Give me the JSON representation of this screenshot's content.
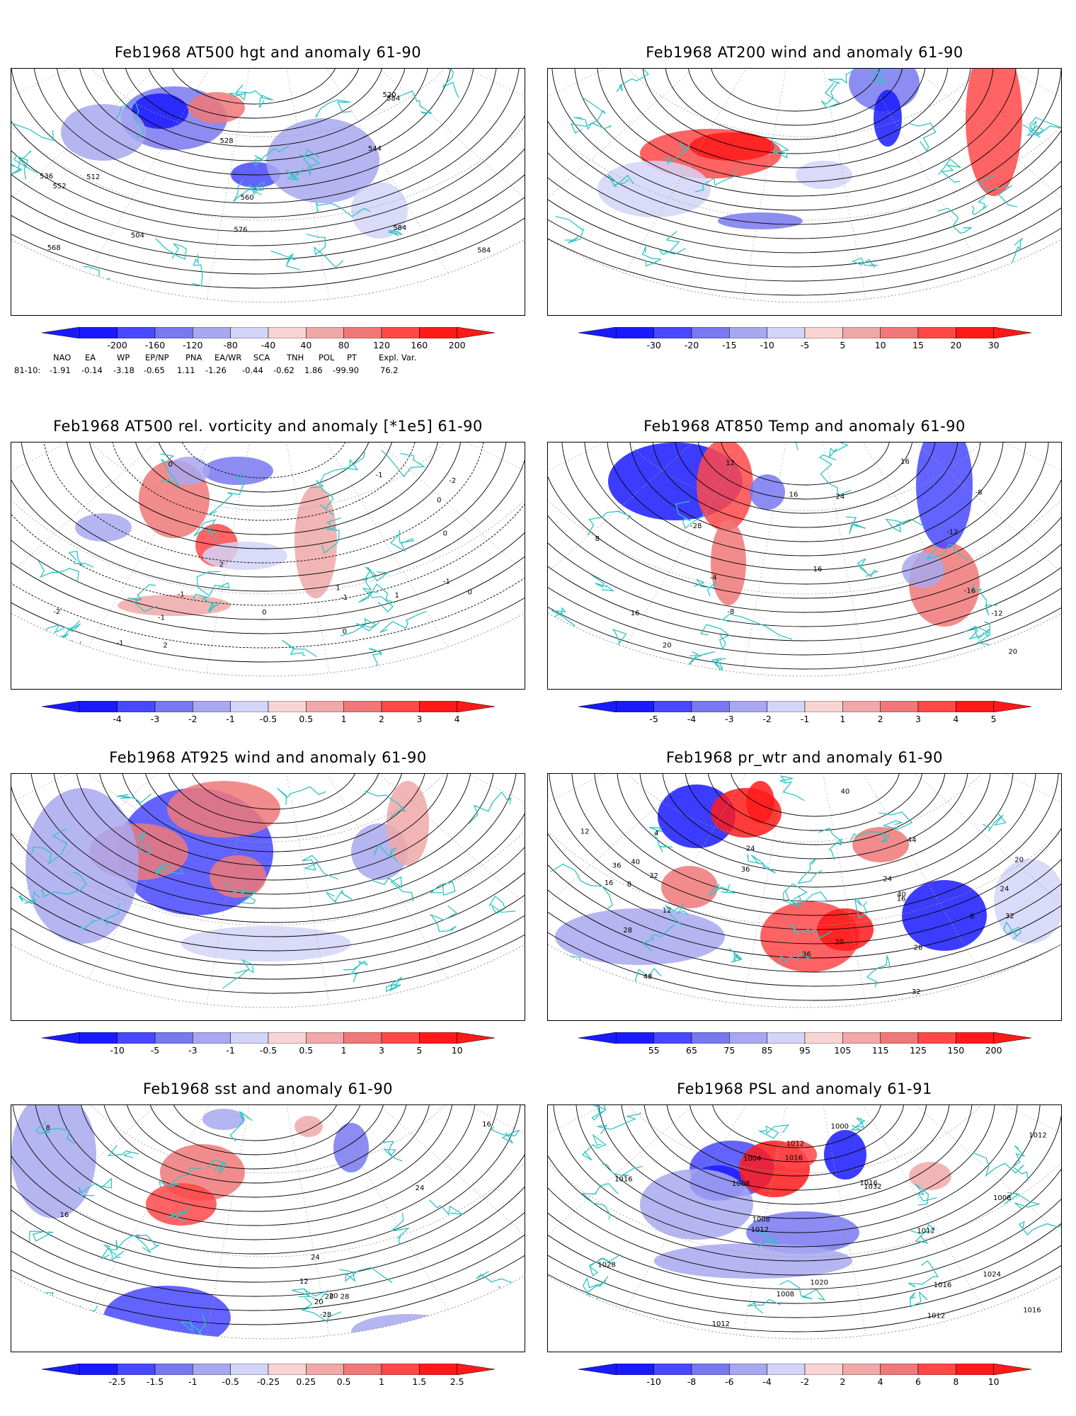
{
  "panels": [
    {
      "title": "Feb1968 AT500 hgt and anomaly 61-90",
      "ticks": [
        "-200",
        "-160",
        "-120",
        "-80",
        "-40",
        "40",
        "80",
        "120",
        "160",
        "200"
      ],
      "contour_labels": [
        "584",
        "504",
        "512",
        "520",
        "528",
        "536",
        "544",
        "552",
        "560",
        "568",
        "576",
        "584",
        "584"
      ]
    },
    {
      "title": "Feb1968 AT200 wind and anomaly 61-90",
      "ticks": [
        "-30",
        "-20",
        "-15",
        "-10",
        "-5",
        "5",
        "10",
        "15",
        "20",
        "30"
      ],
      "contour_labels": []
    },
    {
      "title": "Feb1968 AT500 rel. vorticity and anomaly [*1e5] 61-90",
      "ticks": [
        "-4",
        "-3",
        "-2",
        "-1",
        "-0.5",
        "0.5",
        "1",
        "2",
        "3",
        "4"
      ],
      "contour_labels": [
        "-1",
        "-2",
        "-1",
        "1",
        "2",
        "-1",
        "0",
        "0",
        "0",
        "1",
        "2",
        "-1",
        "0",
        "0",
        "-1",
        "0",
        "-1",
        "-2"
      ]
    },
    {
      "title": "Feb1968 AT850 Temp and anomaly 61-90",
      "ticks": [
        "-5",
        "-4",
        "-3",
        "-2",
        "-1",
        "1",
        "2",
        "3",
        "4",
        "5"
      ],
      "contour_labels": [
        "16",
        "-12",
        "-8",
        "-28",
        "-16",
        "-12",
        "-8",
        "16",
        "16",
        "-4",
        "8",
        "12",
        "16",
        "20",
        "24",
        "20"
      ]
    },
    {
      "title": "Feb1968 AT925 wind and anomaly 61-90",
      "ticks": [
        "-10",
        "-5",
        "-3",
        "-1",
        "-0.5",
        "0.5",
        "1",
        "3",
        "5",
        "10"
      ],
      "contour_labels": []
    },
    {
      "title": "Feb1968 pr_wtr and anomaly 61-90",
      "ticks": [
        "55",
        "65",
        "75",
        "85",
        "95",
        "105",
        "115",
        "125",
        "150",
        "200"
      ],
      "contour_labels": [
        "24",
        "28",
        "32",
        "48",
        "44",
        "40",
        "36",
        "24",
        "20",
        "16",
        "12",
        "8",
        "4",
        "20",
        "24",
        "32",
        "40",
        "28",
        "36",
        "12",
        "16",
        "8",
        "40",
        "36",
        "32"
      ]
    },
    {
      "title": "Feb1968 sst and anomaly 61-90",
      "ticks": [
        "-2.5",
        "-1.5",
        "-1",
        "-0.5",
        "-0.25",
        "0.25",
        "0.5",
        "1",
        "1.5",
        "2.5"
      ],
      "contour_labels": [
        "20",
        "12",
        "8",
        "16",
        "20",
        "24",
        "28",
        "28",
        "-28",
        "24",
        "16"
      ]
    },
    {
      "title": "Feb1968 PSL and anomaly 61-91",
      "ticks": [
        "-10",
        "-8",
        "-6",
        "-4",
        "-2",
        "2",
        "4",
        "6",
        "8",
        "10"
      ],
      "contour_labels": [
        "1016",
        "1020",
        "1004",
        "1008",
        "1024",
        "1000",
        "1012",
        "1028",
        "1032",
        "1016",
        "1012",
        "1008",
        "1012",
        "1016",
        "1012",
        "1016",
        "1008",
        "1012",
        "1016",
        "1012",
        "1008"
      ]
    }
  ],
  "indices": {
    "headers": [
      "NAO",
      "EA",
      "WP",
      "EP/NP",
      "PNA",
      "EA/WR",
      "SCA",
      "TNH",
      "POL",
      "PT",
      "Expl. Var."
    ],
    "row_label": "81-10:",
    "values": [
      "-1.91",
      "-0.14",
      "-3.18",
      "-0.65",
      "1.11",
      "-1.26",
      "-0.44",
      "-0.62",
      "1.86",
      "-99.90",
      "76.2"
    ]
  },
  "colors": {
    "coastline": "#2ec4c4",
    "contour": "#000000",
    "negative": [
      "#1a1aff",
      "#4848ff",
      "#7878f0",
      "#a8a8f0",
      "#d4d4f8"
    ],
    "positive": [
      "#f8d4d4",
      "#f0a8a8",
      "#f07878",
      "#ff4848",
      "#ff1a1a"
    ]
  }
}
